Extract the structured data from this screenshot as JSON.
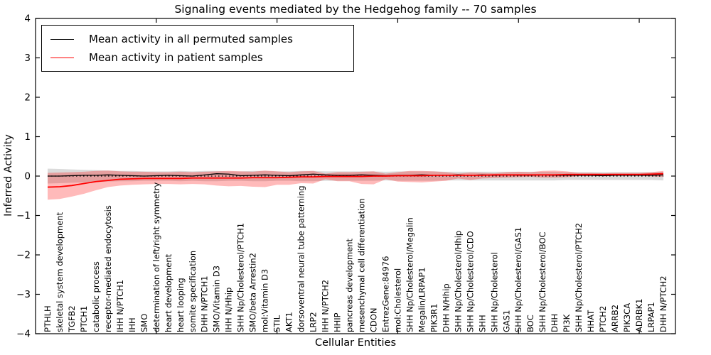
{
  "figure": {
    "title": "Signaling events mediated by the Hedgehog family -- 70 samples",
    "xlabel": "Cellular Entities",
    "ylabel": "Inferred Activity"
  },
  "legend": {
    "items": [
      {
        "label": "Mean activity in all permuted samples",
        "color": "#000000"
      },
      {
        "label": "Mean activity in patient samples",
        "color": "#ff0000"
      }
    ]
  },
  "chart_data": {
    "type": "line",
    "title": "Signaling events mediated by the Hedgehog family -- 70 samples",
    "xlabel": "Cellular Entities",
    "ylabel": "Inferred Activity",
    "ylim": [
      -4,
      4
    ],
    "yticks": [
      -4,
      -3,
      -2,
      -1,
      0,
      1,
      2,
      3,
      4
    ],
    "yticklabels": [
      "−4",
      "−3",
      "−2",
      "−1",
      "0",
      "1",
      "2",
      "3",
      "4"
    ],
    "xtick_value_positions": [
      10,
      20,
      30,
      40,
      50
    ],
    "grid": false,
    "legend_position": "upper left",
    "categories": [
      "PTHLH",
      "skeletal system development",
      "TGFB2",
      "PTCH1",
      "catabolic process",
      "receptor-mediated endocytosis",
      "IHH N/PTCH1",
      "IHH",
      "SMO",
      "determination of left/right symmetry",
      "heart development",
      "heart looping",
      "somite specification",
      "DHH N/PTCH1",
      "SMO/Vitamin D3",
      "IHH N/Hhip",
      "SHH Np/Cholesterol/PTCH1",
      "SMO/beta Arrestin2",
      "mol:Vitamin D3",
      "STIL",
      "AKT1",
      "dorsoventral neural tube patterning",
      "LRP2",
      "IHH N/PTCH2",
      "HHIP",
      "pancreas development",
      "mesenchymal cell differentiation",
      "CDON",
      "EntrezGene:84976",
      "mol:Cholesterol",
      "SHH Np/Cholesterol/Megalin",
      "Megalin/LRPAP1",
      "PIK3R1",
      "DHH N/Hhip",
      "SHH Np/Cholesterol/Hhip",
      "SHH Np/Cholesterol/CDO",
      "SHH",
      "SHH Np/Cholesterol",
      "GAS1",
      "SHH Np/Cholesterol/GAS1",
      "BOC",
      "SHH Np/Cholesterol/BOC",
      "DHH",
      "PI3K",
      "SHH Np/Cholesterol/PTCH2",
      "HHAT",
      "PTCH2",
      "ARRB2",
      "PIK3CA",
      "ADRBK1",
      "LRPAP1",
      "DHH N/PTCH2"
    ],
    "series": [
      {
        "name": "Mean activity in all permuted samples",
        "color": "#000000",
        "values": [
          0.0,
          0.0,
          0.01,
          0.02,
          0.02,
          0.03,
          0.02,
          0.01,
          0.0,
          0.01,
          0.02,
          0.01,
          0.0,
          0.03,
          0.06,
          0.05,
          0.01,
          0.02,
          0.03,
          0.02,
          0.01,
          0.03,
          0.05,
          0.03,
          0.02,
          0.02,
          0.03,
          0.02,
          0.01,
          0.02,
          0.02,
          0.03,
          0.02,
          0.02,
          0.03,
          0.02,
          0.03,
          0.02,
          0.03,
          0.02,
          0.02,
          0.03,
          0.02,
          0.02,
          0.02,
          0.02,
          0.01,
          0.02,
          0.02,
          0.02,
          0.02,
          0.03
        ]
      },
      {
        "name": "Mean activity in patient samples",
        "color": "#ff0000",
        "values": [
          -0.28,
          -0.27,
          -0.24,
          -0.19,
          -0.14,
          -0.11,
          -0.08,
          -0.07,
          -0.06,
          -0.06,
          -0.06,
          -0.06,
          -0.05,
          -0.05,
          -0.05,
          -0.05,
          -0.05,
          -0.04,
          -0.04,
          -0.04,
          -0.03,
          -0.02,
          -0.02,
          -0.01,
          -0.01,
          -0.01,
          -0.01,
          0.0,
          0.0,
          0.01,
          0.01,
          0.01,
          0.02,
          0.02,
          0.02,
          0.02,
          0.02,
          0.03,
          0.03,
          0.03,
          0.03,
          0.03,
          0.03,
          0.04,
          0.04,
          0.04,
          0.04,
          0.04,
          0.04,
          0.04,
          0.05,
          0.06
        ]
      }
    ],
    "bands": [
      {
        "name": "permuted samples range",
        "color": "rgba(0,0,0,0.14)",
        "upper": [
          0.19,
          0.18,
          0.17,
          0.16,
          0.15,
          0.14,
          0.13,
          0.13,
          0.12,
          0.12,
          0.12,
          0.13,
          0.12,
          0.13,
          0.13,
          0.12,
          0.12,
          0.13,
          0.13,
          0.12,
          0.12,
          0.13,
          0.13,
          0.12,
          0.12,
          0.12,
          0.12,
          0.12,
          0.11,
          0.12,
          0.12,
          0.12,
          0.12,
          0.11,
          0.11,
          0.11,
          0.11,
          0.11,
          0.11,
          0.11,
          0.11,
          0.11,
          0.11,
          0.1,
          0.1,
          0.1,
          0.1,
          0.1,
          0.1,
          0.1,
          0.1,
          0.11
        ],
        "lower": [
          -0.19,
          -0.18,
          -0.17,
          -0.16,
          -0.15,
          -0.14,
          -0.13,
          -0.13,
          -0.12,
          -0.12,
          -0.12,
          -0.13,
          -0.12,
          -0.13,
          -0.13,
          -0.12,
          -0.12,
          -0.13,
          -0.13,
          -0.12,
          -0.12,
          -0.13,
          -0.13,
          -0.12,
          -0.12,
          -0.12,
          -0.12,
          -0.12,
          -0.11,
          -0.12,
          -0.12,
          -0.12,
          -0.12,
          -0.11,
          -0.11,
          -0.11,
          -0.11,
          -0.11,
          -0.11,
          -0.11,
          -0.11,
          -0.11,
          -0.11,
          -0.1,
          -0.1,
          -0.1,
          -0.1,
          -0.1,
          -0.1,
          -0.1,
          -0.1,
          -0.11
        ]
      },
      {
        "name": "patient samples range",
        "color": "rgba(255,0,0,0.27)",
        "upper": [
          0.08,
          0.09,
          0.1,
          0.11,
          0.13,
          0.14,
          0.12,
          0.11,
          0.11,
          0.1,
          0.1,
          0.11,
          0.1,
          0.11,
          0.12,
          0.13,
          0.12,
          0.11,
          0.14,
          0.12,
          0.1,
          0.12,
          0.13,
          0.06,
          0.1,
          0.1,
          0.11,
          0.12,
          0.06,
          0.1,
          0.13,
          0.13,
          0.12,
          0.1,
          0.06,
          0.09,
          0.08,
          0.07,
          0.1,
          0.11,
          0.1,
          0.13,
          0.14,
          0.12,
          0.08,
          0.08,
          0.07,
          0.08,
          0.08,
          0.08,
          0.1,
          0.13
        ],
        "lower": [
          -0.6,
          -0.58,
          -0.52,
          -0.45,
          -0.36,
          -0.28,
          -0.24,
          -0.22,
          -0.21,
          -0.2,
          -0.2,
          -0.21,
          -0.2,
          -0.21,
          -0.24,
          -0.26,
          -0.25,
          -0.27,
          -0.28,
          -0.22,
          -0.22,
          -0.18,
          -0.19,
          -0.08,
          -0.13,
          -0.13,
          -0.2,
          -0.21,
          -0.08,
          -0.14,
          -0.15,
          -0.16,
          -0.14,
          -0.12,
          -0.06,
          -0.1,
          -0.06,
          -0.05,
          -0.04,
          -0.03,
          -0.02,
          -0.04,
          -0.04,
          -0.03,
          0.0,
          0.0,
          0.01,
          0.01,
          0.01,
          0.01,
          -0.01,
          -0.02
        ]
      }
    ],
    "zero_line": {
      "y": 0,
      "style": "dotted",
      "color": "#000000"
    }
  }
}
